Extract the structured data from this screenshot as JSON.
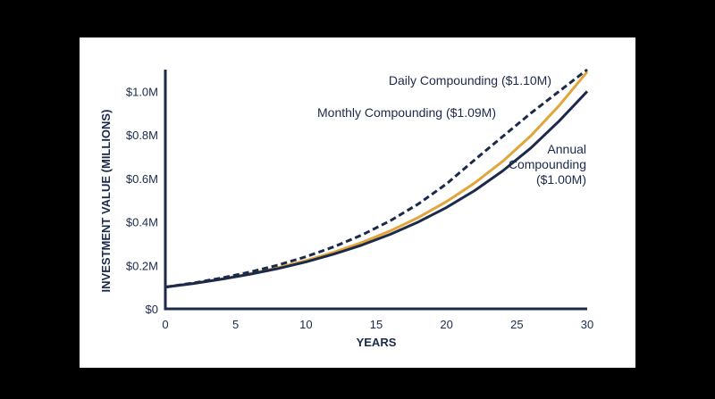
{
  "chart_data": {
    "type": "line",
    "title": "",
    "xlabel": "YEARS",
    "ylabel": "INVESTMENT VALUE (MILLIONS)",
    "xlim": [
      0,
      30
    ],
    "ylim": [
      0,
      1.1
    ],
    "x_ticks": [
      {
        "value": 0,
        "label": "0"
      },
      {
        "value": 5,
        "label": "5"
      },
      {
        "value": 10,
        "label": "10"
      },
      {
        "value": 15,
        "label": "15"
      },
      {
        "value": 20,
        "label": "20"
      },
      {
        "value": 25,
        "label": "25"
      },
      {
        "value": 30,
        "label": "30"
      }
    ],
    "y_ticks": [
      {
        "value": 0,
        "label": "$0"
      },
      {
        "value": 0.2,
        "label": "$0.2M"
      },
      {
        "value": 0.4,
        "label": "$0.4M"
      },
      {
        "value": 0.6,
        "label": "$0.6M"
      },
      {
        "value": 0.8,
        "label": "$0.8M"
      },
      {
        "value": 1.0,
        "label": "$1.0M"
      }
    ],
    "grid": false,
    "x": [
      0,
      2,
      4,
      6,
      8,
      10,
      12,
      14,
      16,
      18,
      20,
      22,
      24,
      26,
      28,
      30
    ],
    "series": [
      {
        "name": "Annual Compounding ($1.00M)",
        "label_lines": [
          "Annual",
          "Compounding",
          "($1.00M)"
        ],
        "color": "#1b2a4a",
        "style": "solid",
        "values": [
          0.1,
          0.1166,
          0.1361,
          0.1587,
          0.1851,
          0.2159,
          0.2519,
          0.2938,
          0.3427,
          0.3998,
          0.4663,
          0.5439,
          0.6345,
          0.7401,
          0.8633,
          1.0
        ]
      },
      {
        "name": "Monthly Compounding ($1.09M)",
        "label_lines": [
          "Monthly Compounding ($1.09M)"
        ],
        "color": "#e1a53a",
        "style": "solid",
        "values": [
          0.1,
          0.1173,
          0.1376,
          0.1614,
          0.1893,
          0.2221,
          0.2605,
          0.3056,
          0.3585,
          0.4205,
          0.4933,
          0.5786,
          0.6788,
          0.7962,
          0.934,
          1.09
        ]
      },
      {
        "name": "Daily Compounding ($1.10M)",
        "label_lines": [
          "Daily Compounding ($1.10M)"
        ],
        "color": "#1b2a4a",
        "style": "dashed",
        "values": [
          0.1,
          0.1191,
          0.1419,
          0.169,
          0.2013,
          0.2398,
          0.2856,
          0.3403,
          0.4053,
          0.4828,
          0.5752,
          0.6851,
          0.7928,
          0.9,
          1.0,
          1.1
        ]
      }
    ]
  }
}
